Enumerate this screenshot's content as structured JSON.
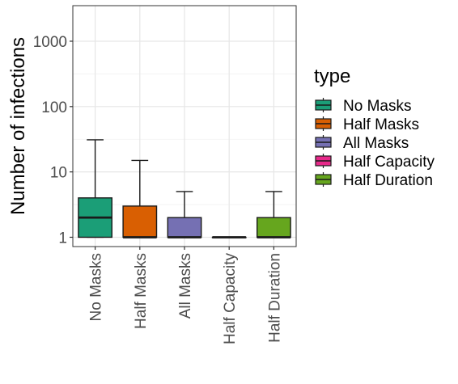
{
  "chart_data": {
    "type": "boxplot",
    "xlabel": "",
    "ylabel": "Number of infections",
    "yscale": "log10",
    "ylim": [
      0.72,
      3500
    ],
    "yticks": [
      1,
      10,
      100,
      1000
    ],
    "ytick_labels": [
      "1",
      "10",
      "100",
      "1000"
    ],
    "grid": true,
    "legend_title": "type",
    "legend_position": "right",
    "categories": [
      "No Masks",
      "Half Masks",
      "All Masks",
      "Half Capacity",
      "Half Duration"
    ],
    "series": [
      {
        "name": "No Masks",
        "color": "#1b9e77",
        "whisker_low": 1,
        "q1": 1,
        "median": 2,
        "q3": 4,
        "whisker_high": 31
      },
      {
        "name": "Half Masks",
        "color": "#d95f02",
        "whisker_low": 1,
        "q1": 1,
        "median": 1,
        "q3": 3,
        "whisker_high": 15
      },
      {
        "name": "All Masks",
        "color": "#7570b3",
        "whisker_low": 1,
        "q1": 1,
        "median": 1,
        "q3": 2,
        "whisker_high": 5
      },
      {
        "name": "Half Capacity",
        "color": "#e7298a",
        "whisker_low": 1,
        "q1": 1,
        "median": 1,
        "q3": 1,
        "whisker_high": 1
      },
      {
        "name": "Half Duration",
        "color": "#66a61e",
        "whisker_low": 1,
        "q1": 1,
        "median": 1,
        "q3": 2,
        "whisker_high": 5
      }
    ]
  }
}
